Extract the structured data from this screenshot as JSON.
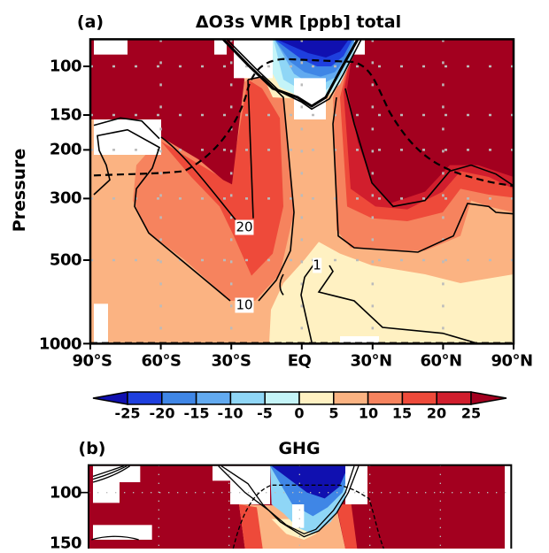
{
  "chart_data": [
    {
      "type": "heatmap",
      "panel": "(a)",
      "title": "ΔO3s VMR [ppb] total",
      "xlabel": "",
      "ylabel": "Pressure",
      "x_ticks": [
        "90°S",
        "60°S",
        "30°S",
        "EQ",
        "30°N",
        "60°N",
        "90°N"
      ],
      "x_values": [
        -90,
        -60,
        -30,
        0,
        30,
        60,
        90
      ],
      "y_ticks": [
        "100",
        "150",
        "200",
        "300",
        "500",
        "1000"
      ],
      "y_values": [
        100,
        150,
        200,
        300,
        500,
        1000
      ],
      "xlim": [
        -90,
        90
      ],
      "ylim": [
        1000,
        80
      ],
      "y_scale": "log",
      "grid": true,
      "contour_labels": [
        "20",
        "10",
        "1"
      ],
      "features": {
        "negative_minimum": "tropical upper troposphere near 100 hPa, below -25 ppb",
        "positive_maxima": "extratropical upper troposphere in both hemispheres, above 25 ppb",
        "tropopause": "dashed line"
      }
    },
    {
      "type": "heatmap",
      "panel": "(b)",
      "title": "GHG",
      "y_ticks": [
        "100",
        "150"
      ],
      "y_values": [
        100,
        150
      ],
      "y_scale": "log",
      "grid": true
    }
  ],
  "colorbar": {
    "levels": [
      "-25",
      "-20",
      "-15",
      "-10",
      "-5",
      "0",
      "5",
      "10",
      "15",
      "20",
      "25"
    ],
    "colors": [
      "#1010b0",
      "#1e3fde",
      "#3f86e6",
      "#62aaf0",
      "#8fd6f6",
      "#c4f4f8",
      "#fff1c2",
      "#fbb382",
      "#f6835e",
      "#ee4a3a",
      "#d11e2d",
      "#a3001f"
    ],
    "extend": "both"
  }
}
